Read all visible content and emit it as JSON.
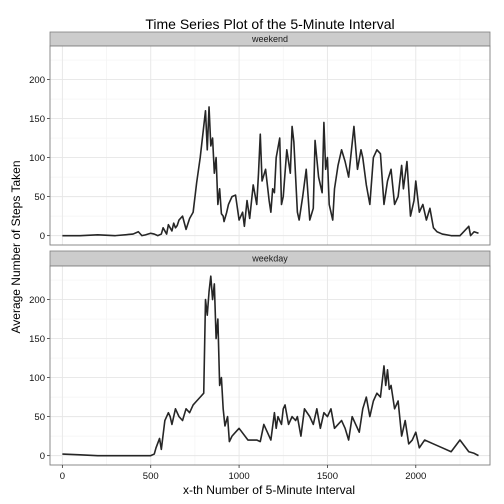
{
  "chart_data": {
    "type": "line",
    "title": "Time Series Plot of the 5-Minute Interval",
    "xlabel": "x-th Number of 5-Minute Interval",
    "ylabel": "Average Number of Steps Taken",
    "xlim": [
      -70,
      2420
    ],
    "ylim": [
      -12,
      243
    ],
    "x_ticks": [
      0,
      500,
      1000,
      1500,
      2000
    ],
    "y_ticks": [
      0,
      50,
      100,
      150,
      200
    ],
    "grid": true,
    "line_color": "#262626",
    "panels": [
      {
        "strip_label": "weekend",
        "x": [
          0,
          100,
          200,
          300,
          400,
          430,
          450,
          470,
          500,
          520,
          540,
          560,
          570,
          590,
          600,
          620,
          630,
          640,
          650,
          660,
          680,
          700,
          720,
          740,
          760,
          780,
          800,
          810,
          820,
          830,
          840,
          850,
          860,
          870,
          880,
          890,
          900,
          910,
          915,
          930,
          940,
          960,
          980,
          1000,
          1020,
          1030,
          1045,
          1060,
          1080,
          1100,
          1110,
          1120,
          1130,
          1150,
          1170,
          1180,
          1190,
          1200,
          1210,
          1230,
          1240,
          1250,
          1270,
          1290,
          1300,
          1310,
          1330,
          1340,
          1360,
          1380,
          1400,
          1420,
          1430,
          1450,
          1470,
          1480,
          1490,
          1500,
          1510,
          1520,
          1530,
          1540,
          1560,
          1580,
          1600,
          1620,
          1650,
          1670,
          1690,
          1700,
          1720,
          1740,
          1760,
          1780,
          1800,
          1820,
          1840,
          1860,
          1880,
          1900,
          1920,
          1930,
          1950,
          1970,
          1990,
          2000,
          2020,
          2040,
          2060,
          2080,
          2100,
          2120,
          2150,
          2200,
          2250,
          2300,
          2310,
          2330,
          2355
        ],
        "y": [
          0,
          0,
          1,
          0,
          2,
          5,
          0,
          1,
          3,
          2,
          0,
          2,
          10,
          2,
          14,
          6,
          16,
          10,
          13,
          20,
          25,
          8,
          22,
          30,
          68,
          100,
          140,
          160,
          110,
          165,
          115,
          125,
          80,
          100,
          40,
          60,
          28,
          25,
          18,
          30,
          40,
          50,
          52,
          20,
          30,
          12,
          45,
          22,
          65,
          40,
          80,
          130,
          70,
          85,
          45,
          30,
          60,
          55,
          100,
          125,
          40,
          50,
          110,
          80,
          140,
          120,
          30,
          20,
          50,
          85,
          20,
          35,
          122,
          75,
          55,
          145,
          85,
          100,
          40,
          30,
          20,
          60,
          90,
          110,
          95,
          75,
          140,
          85,
          110,
          100,
          65,
          40,
          100,
          110,
          105,
          40,
          70,
          85,
          40,
          50,
          90,
          60,
          95,
          25,
          45,
          70,
          30,
          40,
          20,
          35,
          10,
          5,
          2,
          0,
          0,
          12,
          0,
          5,
          3
        ]
      },
      {
        "strip_label": "weekday",
        "x": [
          0,
          100,
          200,
          300,
          400,
          450,
          500,
          520,
          530,
          550,
          560,
          580,
          600,
          610,
          620,
          640,
          660,
          680,
          700,
          720,
          740,
          760,
          780,
          800,
          810,
          820,
          830,
          840,
          850,
          860,
          870,
          880,
          890,
          900,
          910,
          920,
          935,
          945,
          960,
          980,
          1000,
          1050,
          1100,
          1120,
          1140,
          1160,
          1180,
          1200,
          1210,
          1220,
          1240,
          1250,
          1260,
          1280,
          1300,
          1320,
          1330,
          1350,
          1370,
          1400,
          1420,
          1440,
          1460,
          1480,
          1500,
          1520,
          1540,
          1560,
          1580,
          1600,
          1620,
          1640,
          1660,
          1680,
          1700,
          1720,
          1740,
          1760,
          1780,
          1800,
          1820,
          1830,
          1840,
          1850,
          1860,
          1880,
          1900,
          1920,
          1940,
          1960,
          1980,
          2000,
          2020,
          2050,
          2100,
          2150,
          2200,
          2250,
          2300,
          2330,
          2355
        ],
        "y": [
          2,
          1,
          0,
          0,
          0,
          0,
          0,
          2,
          10,
          22,
          8,
          45,
          55,
          50,
          40,
          60,
          50,
          45,
          60,
          55,
          65,
          70,
          75,
          80,
          200,
          180,
          210,
          230,
          200,
          220,
          150,
          175,
          90,
          100,
          60,
          38,
          50,
          18,
          25,
          30,
          35,
          20,
          20,
          18,
          40,
          30,
          20,
          55,
          35,
          50,
          40,
          60,
          65,
          40,
          50,
          45,
          50,
          25,
          60,
          50,
          40,
          60,
          35,
          55,
          50,
          60,
          35,
          40,
          45,
          35,
          20,
          50,
          40,
          30,
          60,
          75,
          50,
          70,
          80,
          75,
          115,
          90,
          110,
          85,
          90,
          60,
          70,
          25,
          45,
          15,
          20,
          30,
          10,
          20,
          15,
          10,
          5,
          20,
          5,
          3,
          0
        ]
      }
    ]
  }
}
